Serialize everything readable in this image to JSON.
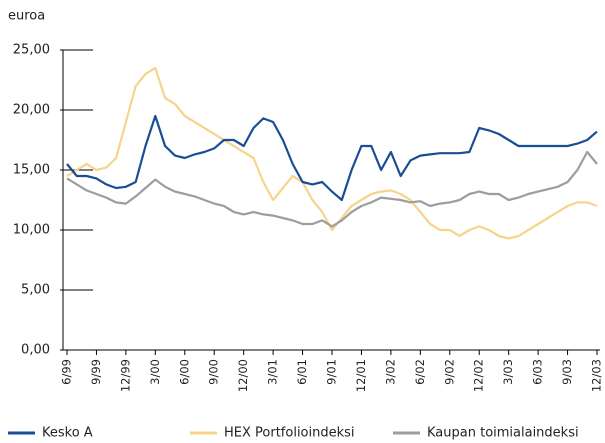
{
  "chart_data": {
    "type": "line",
    "y_label": "euroa",
    "categories": [
      "6/99",
      null,
      null,
      "9/99",
      null,
      null,
      "12/99",
      null,
      null,
      "3/00",
      null,
      null,
      "6/00",
      null,
      null,
      "9/00",
      null,
      null,
      "12/00",
      null,
      null,
      "3/01",
      null,
      null,
      "6/01",
      null,
      null,
      "9/01",
      null,
      null,
      "12/01",
      null,
      null,
      "3/02",
      null,
      null,
      "6/02",
      null,
      null,
      "9/02",
      null,
      null,
      "12/02",
      null,
      null,
      "3/03",
      null,
      null,
      "6/03",
      null,
      null,
      "9/03",
      null,
      null,
      "12/03"
    ],
    "series": [
      {
        "name": "Kesko A",
        "color": "#1a4e94",
        "values": [
          15.5,
          14.5,
          14.5,
          14.3,
          13.8,
          13.5,
          13.6,
          14,
          17,
          19.5,
          17,
          16.2,
          16,
          16.3,
          16.5,
          16.8,
          17.5,
          17.5,
          17,
          18.5,
          19.3,
          19,
          17.5,
          15.5,
          14,
          13.8,
          14,
          13.2,
          12.5,
          15,
          17,
          17,
          15,
          16.5,
          14.5,
          15.8,
          16.2,
          16.3,
          16.4,
          16.4,
          16.4,
          16.5,
          18.5,
          18.3,
          18,
          17.5,
          17,
          17,
          17,
          17,
          17,
          17,
          17.2,
          17.5,
          18.2
        ]
      },
      {
        "name": "HEX Portfolioindeksi",
        "color": "#f7d48c",
        "values": [
          14.5,
          15,
          15.5,
          15,
          15.2,
          16,
          19,
          22,
          23,
          23.5,
          21,
          20.5,
          19.5,
          19,
          18.5,
          18,
          17.5,
          17,
          16.5,
          16,
          14,
          12.5,
          13.5,
          14.5,
          14,
          12.5,
          11.5,
          10,
          11,
          12,
          12.5,
          13,
          13.2,
          13.3,
          13,
          12.5,
          11.5,
          10.5,
          10,
          10,
          9.5,
          10,
          10.3,
          10,
          9.5,
          9.3,
          9.5,
          10,
          10.5,
          11,
          11.5,
          12,
          12.3,
          12.3,
          12
        ]
      },
      {
        "name": "Kaupan toimialaindeksi",
        "color": "#9d9d9d",
        "values": [
          14.3,
          13.8,
          13.3,
          13,
          12.7,
          12.3,
          12.2,
          12.8,
          13.5,
          14.2,
          13.6,
          13.2,
          13,
          12.8,
          12.5,
          12.2,
          12,
          11.5,
          11.3,
          11.5,
          11.3,
          11.2,
          11,
          10.8,
          10.5,
          10.5,
          10.8,
          10.3,
          10.8,
          11.5,
          12,
          12.3,
          12.7,
          12.6,
          12.5,
          12.3,
          12.4,
          12,
          12.2,
          12.3,
          12.5,
          13,
          13.2,
          13,
          13,
          12.5,
          12.7,
          13,
          13.2,
          13.4,
          13.6,
          14,
          15,
          16.5,
          15.5
        ]
      }
    ],
    "ylim": [
      0,
      25
    ],
    "yticks": [
      {
        "value": 0,
        "label": "0,00"
      },
      {
        "value": 5,
        "label": "5,00"
      },
      {
        "value": 10,
        "label": "10,00"
      },
      {
        "value": 15,
        "label": "15,00"
      },
      {
        "value": 20,
        "label": "20,00"
      },
      {
        "value": 25,
        "label": "25,00"
      }
    ],
    "legend": "bottom"
  }
}
